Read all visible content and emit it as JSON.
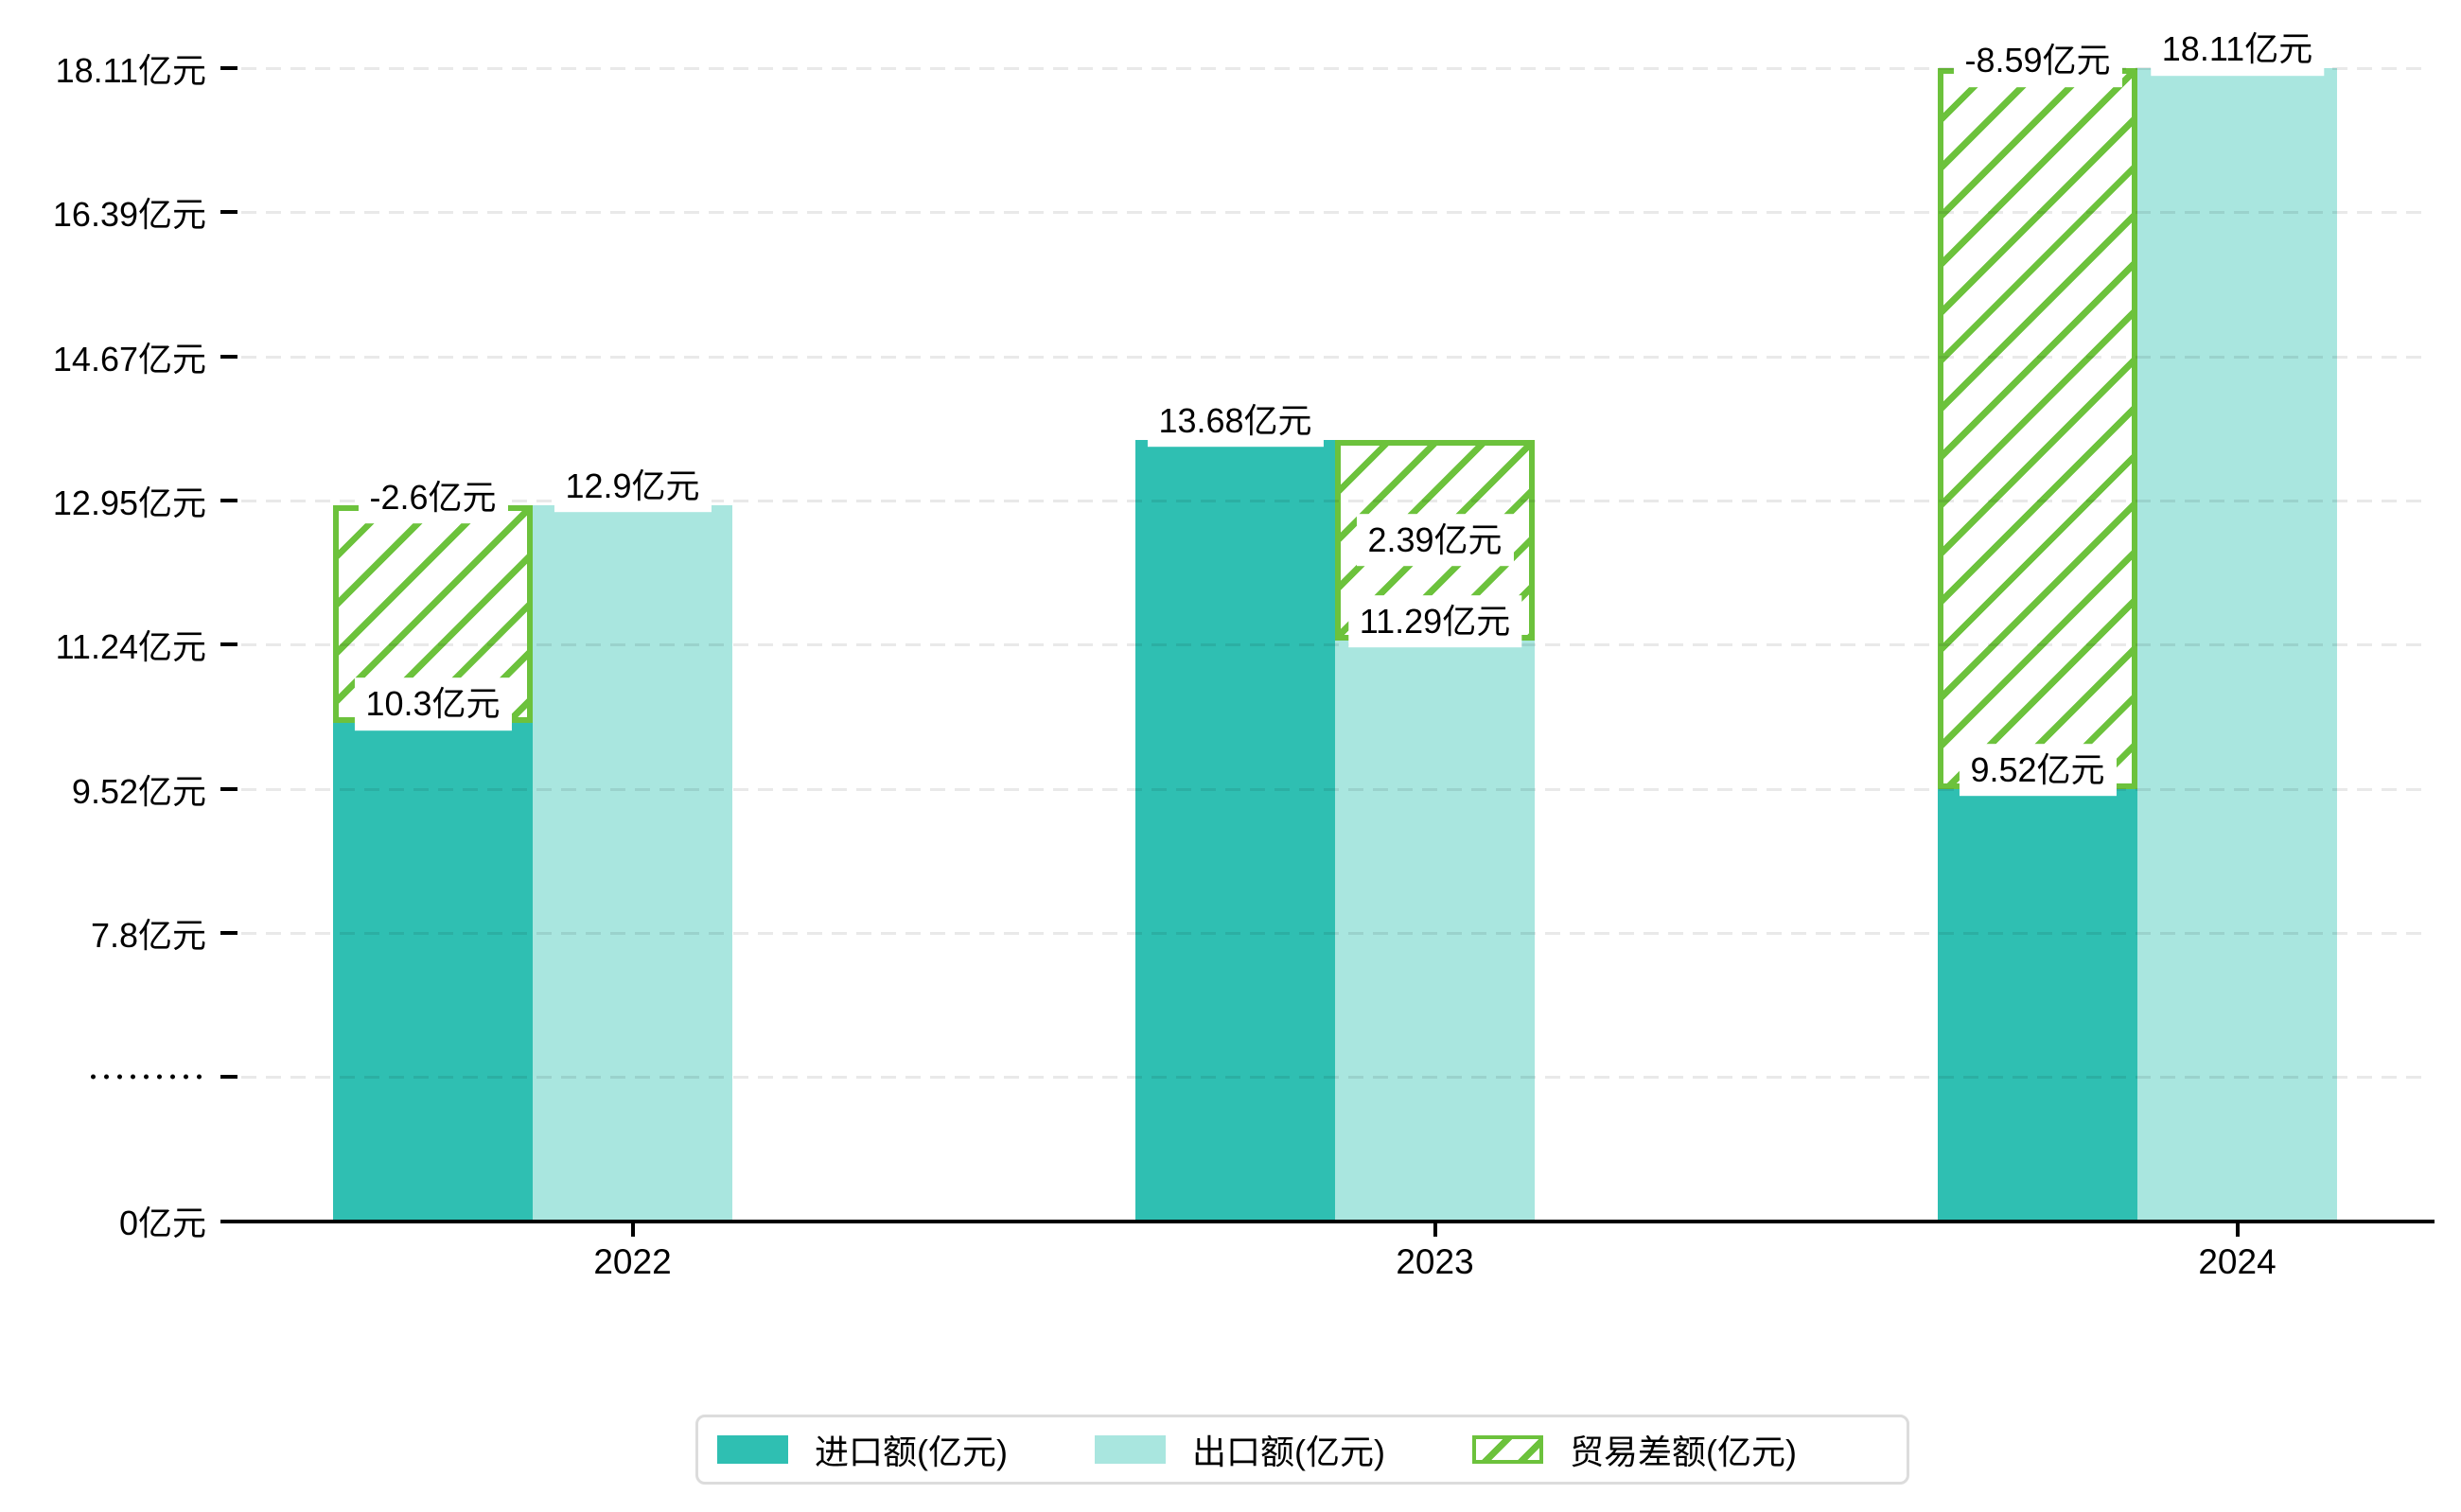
{
  "chart_data": {
    "type": "bar",
    "title": "",
    "categories": [
      "2022",
      "2023",
      "2024"
    ],
    "series": [
      {
        "name": "进口额(亿元)",
        "role": "import",
        "values": [
          10.3,
          13.68,
          9.52
        ],
        "value_labels": [
          "10.3亿元",
          "13.68亿元",
          "9.52亿元"
        ],
        "color": "#2fbfb2"
      },
      {
        "name": "出口额(亿元)",
        "role": "export",
        "values": [
          12.9,
          11.29,
          18.11
        ],
        "value_labels": [
          "12.9亿元",
          "11.29亿元",
          "18.11亿元"
        ],
        "color": "#a9e6df"
      },
      {
        "name": "贸易差额(亿元)",
        "role": "trade-balance",
        "style": "hatched-overlay",
        "values": [
          -2.6,
          2.39,
          -8.59
        ],
        "value_labels": [
          "-2.6亿元",
          "2.39亿元",
          "-8.59亿元"
        ],
        "color": "#6cc23c"
      }
    ],
    "y_axis": {
      "unit": "亿元",
      "tick_values": [
        18.11,
        16.39,
        14.67,
        12.95,
        11.24,
        9.52,
        7.8
      ],
      "tick_labels": [
        "18.11亿元",
        "16.39亿元",
        "14.67亿元",
        "12.95亿元",
        "11.24亿元",
        "9.52亿元",
        "7.8亿元"
      ],
      "break_label": "·········",
      "zero_label": "0亿元",
      "has_break": true
    },
    "x_axis": {
      "tick_labels": [
        "2022",
        "2023",
        "2024"
      ]
    },
    "grid": "horizontal-dashed",
    "legend_position": "bottom",
    "ylim": [
      0,
      18.11
    ]
  },
  "colors": {
    "import": "#2fbfb2",
    "export": "#a9e6df",
    "balance_green": "#6cc23c",
    "label_bg": "#ffffff",
    "axis": "#000000",
    "legend_border": "#dcdcdc",
    "background": "#ffffff"
  }
}
